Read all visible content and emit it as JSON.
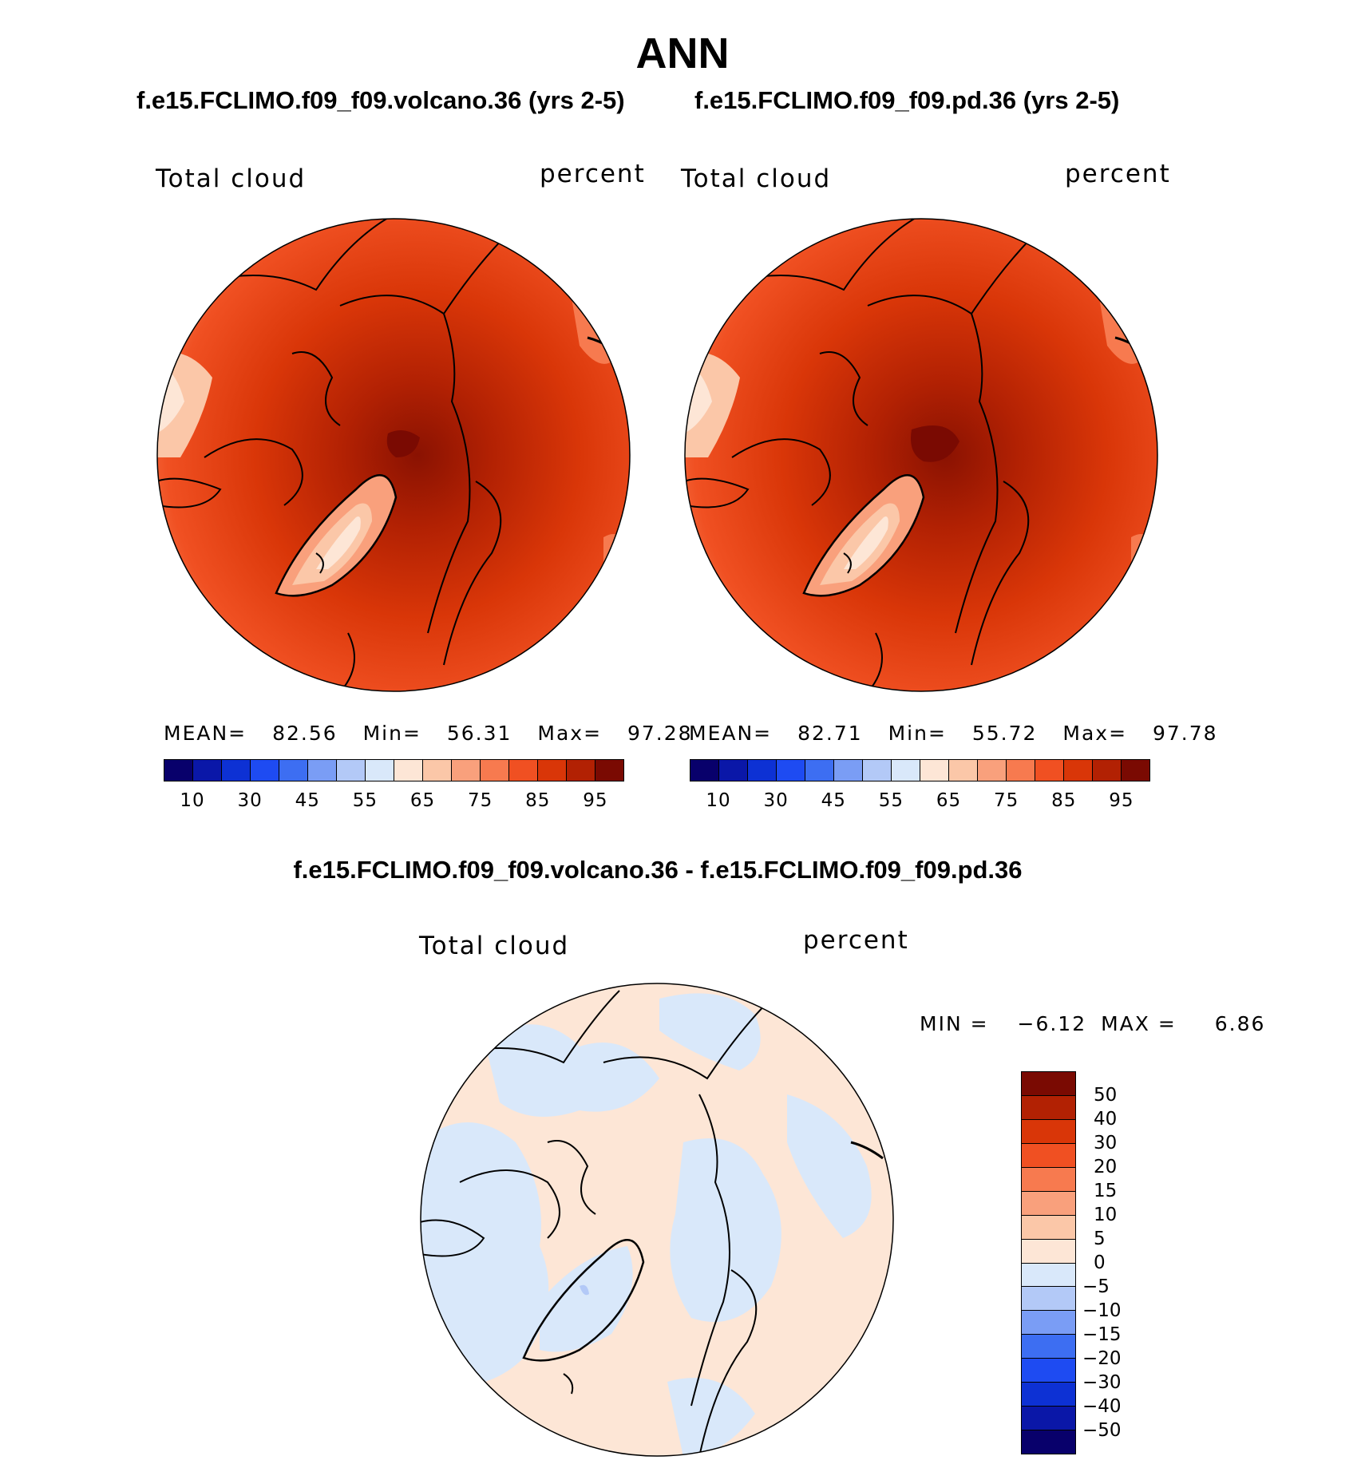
{
  "title": "ANN",
  "panels": [
    {
      "id": "volcano",
      "heading": "f.e15.FCLIMO.f09_f09.volcano.36 (yrs 2-5)",
      "variable_label": "Total cloud",
      "units_label": "percent",
      "mean_label": "MEAN=",
      "mean_value": "82.56",
      "min_label": "Min=",
      "min_value": "56.31",
      "max_label": "Max=",
      "max_value": "97.28"
    },
    {
      "id": "pd",
      "heading": "f.e15.FCLIMO.f09_f09.pd.36 (yrs 2-5)",
      "variable_label": "Total cloud",
      "units_label": "percent",
      "mean_label": "MEAN=",
      "mean_value": "82.71",
      "min_label": "Min=",
      "min_value": "55.72",
      "max_label": "Max=",
      "max_value": "97.78"
    }
  ],
  "diff_panel": {
    "heading": "f.e15.FCLIMO.f09_f09.volcano.36 - f.e15.FCLIMO.f09_f09.pd.36",
    "variable_label": "Total cloud",
    "units_label": "percent",
    "min_label": "MIN =",
    "min_value": "−6.12",
    "max_label": "MAX =",
    "max_value": "6.86"
  },
  "chart_data": [
    {
      "type": "heatmap",
      "projection": "north-polar-stereographic",
      "title": "f.e15.FCLIMO.f09_f09.volcano.36 (yrs 2-5)",
      "variable": "Total cloud",
      "units": "percent",
      "mean": 82.56,
      "min": 56.31,
      "max": 97.28,
      "colorbar": {
        "orientation": "horizontal",
        "levels": [
          5,
          10,
          20,
          30,
          40,
          45,
          50,
          55,
          60,
          65,
          70,
          75,
          80,
          85,
          90,
          95
        ],
        "tick_labels": [
          "10",
          "30",
          "45",
          "55",
          "65",
          "75",
          "85",
          "95"
        ],
        "colors": [
          "#08006b",
          "#0a17a8",
          "#0d31d4",
          "#1e4bf2",
          "#3d6ef2",
          "#7a9df5",
          "#b3c9f7",
          "#d9e8fa",
          "#fde6d6",
          "#fbc7a8",
          "#f9a07c",
          "#f77a4f",
          "#f05022",
          "#d93608",
          "#b22103",
          "#7a0a02"
        ]
      }
    },
    {
      "type": "heatmap",
      "projection": "north-polar-stereographic",
      "title": "f.e15.FCLIMO.f09_f09.pd.36 (yrs 2-5)",
      "variable": "Total cloud",
      "units": "percent",
      "mean": 82.71,
      "min": 55.72,
      "max": 97.78,
      "colorbar": {
        "orientation": "horizontal",
        "levels": [
          5,
          10,
          20,
          30,
          40,
          45,
          50,
          55,
          60,
          65,
          70,
          75,
          80,
          85,
          90,
          95
        ],
        "tick_labels": [
          "10",
          "30",
          "45",
          "55",
          "65",
          "75",
          "85",
          "95"
        ],
        "colors": [
          "#08006b",
          "#0a17a8",
          "#0d31d4",
          "#1e4bf2",
          "#3d6ef2",
          "#7a9df5",
          "#b3c9f7",
          "#d9e8fa",
          "#fde6d6",
          "#fbc7a8",
          "#f9a07c",
          "#f77a4f",
          "#f05022",
          "#d93608",
          "#b22103",
          "#7a0a02"
        ]
      }
    },
    {
      "type": "heatmap",
      "projection": "north-polar-stereographic",
      "title": "f.e15.FCLIMO.f09_f09.volcano.36 - f.e15.FCLIMO.f09_f09.pd.36",
      "variable": "Total cloud",
      "units": "percent",
      "min": -6.12,
      "max": 6.86,
      "colorbar": {
        "orientation": "vertical",
        "tick_labels_top_to_bottom": [
          "50",
          "40",
          "30",
          "20",
          "15",
          "10",
          "5",
          "0",
          "−5",
          "−10",
          "−15",
          "−20",
          "−30",
          "−40",
          "−50"
        ],
        "colors_top_to_bottom": [
          "#7a0a02",
          "#b22103",
          "#d93608",
          "#f05022",
          "#f77a4f",
          "#f9a07c",
          "#fbc7a8",
          "#fde6d6",
          "#d9e8fa",
          "#b3c9f7",
          "#7a9df5",
          "#3d6ef2",
          "#1e4bf2",
          "#0d31d4",
          "#0a17a8",
          "#08006b"
        ]
      }
    }
  ]
}
